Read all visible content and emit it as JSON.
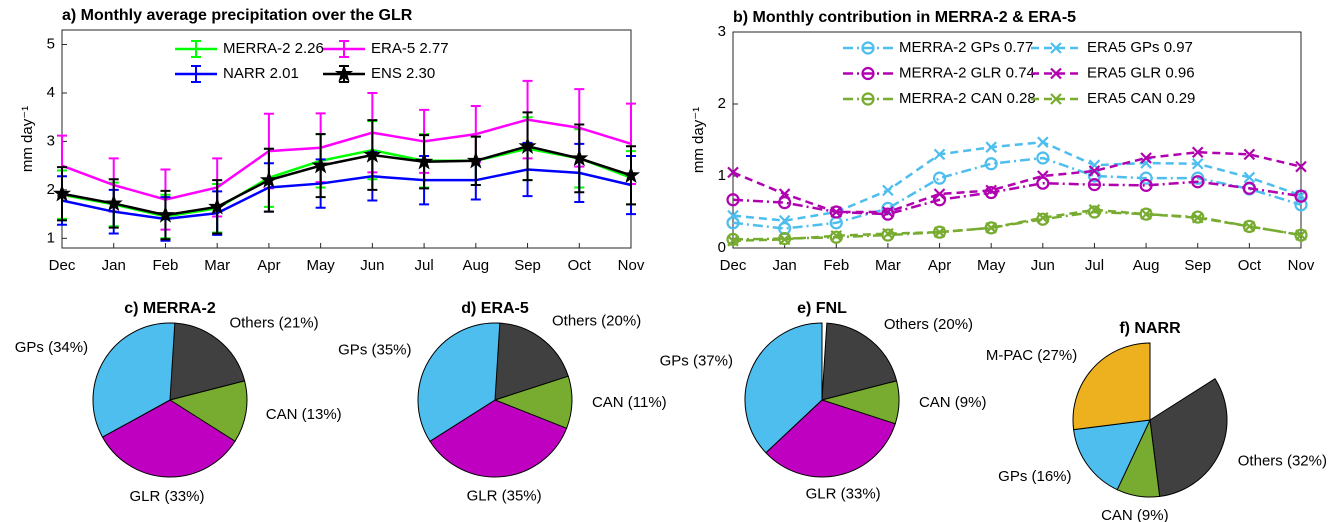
{
  "chart_data": [
    {
      "type": "line",
      "title": "a) Monthly average precipitation over the GLR",
      "ylabel": "mm day⁻¹",
      "categories": [
        "Dec",
        "Jan",
        "Feb",
        "Mar",
        "Apr",
        "May",
        "Jun",
        "Jul",
        "Aug",
        "Sep",
        "Oct",
        "Nov"
      ],
      "ylim": [
        0.8,
        5.3
      ],
      "yticks": [
        1,
        2,
        3,
        4,
        5
      ],
      "series": [
        {
          "name": "MERRA-2 2.26",
          "color": "#00ff00",
          "values": [
            1.9,
            1.7,
            1.45,
            1.62,
            2.25,
            2.6,
            2.82,
            2.6,
            2.6,
            2.85,
            2.65,
            2.25
          ],
          "errors": [
            0.5,
            0.45,
            0.45,
            0.5,
            0.6,
            0.55,
            0.6,
            0.55,
            0.5,
            0.65,
            0.6,
            0.55
          ]
        },
        {
          "name": "ERA-5  2.77",
          "color": "#ff00ff",
          "values": [
            2.5,
            2.1,
            1.8,
            2.05,
            2.8,
            2.87,
            3.18,
            3.0,
            3.15,
            3.45,
            3.28,
            2.95
          ],
          "errors": [
            0.62,
            0.55,
            0.62,
            0.6,
            0.77,
            0.71,
            0.82,
            0.65,
            0.58,
            0.8,
            0.8,
            0.83
          ]
        },
        {
          "name": "NARR  2.01",
          "color": "#0000ff",
          "values": [
            1.78,
            1.55,
            1.4,
            1.52,
            2.05,
            2.13,
            2.28,
            2.2,
            2.2,
            2.42,
            2.35,
            2.1
          ],
          "errors": [
            0.5,
            0.45,
            0.45,
            0.45,
            0.5,
            0.5,
            0.5,
            0.5,
            0.4,
            0.55,
            0.6,
            0.6
          ]
        },
        {
          "name": "ENS 2.30",
          "color": "#000000",
          "marker": "star",
          "values": [
            1.92,
            1.72,
            1.48,
            1.65,
            2.2,
            2.5,
            2.72,
            2.58,
            2.6,
            2.9,
            2.65,
            2.3
          ],
          "errors": [
            0.55,
            0.5,
            0.5,
            0.55,
            0.65,
            0.65,
            0.72,
            0.55,
            0.5,
            0.7,
            0.7,
            0.6
          ]
        }
      ]
    },
    {
      "type": "line",
      "title": "b) Monthly contribution in MERRA-2 & ERA-5",
      "ylabel": "mm day⁻¹",
      "categories": [
        "Dec",
        "Jan",
        "Feb",
        "Mar",
        "Apr",
        "May",
        "Jun",
        "Jul",
        "Aug",
        "Sep",
        "Oct",
        "Nov"
      ],
      "ylim": [
        0,
        3
      ],
      "yticks": [
        0,
        1,
        2,
        3
      ],
      "series": [
        {
          "name": "MERRA-2 GPs 0.77",
          "color": "#4dbeee",
          "marker": "o",
          "linestyle": "dashdot",
          "values": [
            0.35,
            0.27,
            0.35,
            0.55,
            0.97,
            1.17,
            1.25,
            1.0,
            0.97,
            0.97,
            0.82,
            0.6
          ]
        },
        {
          "name": "ERA5 GPs 0.97",
          "color": "#4dbeee",
          "marker": "x",
          "linestyle": "dashed",
          "values": [
            0.45,
            0.38,
            0.5,
            0.8,
            1.3,
            1.4,
            1.47,
            1.15,
            1.18,
            1.17,
            0.98,
            0.73
          ]
        },
        {
          "name": "MERRA-2 GLR 0.74",
          "color": "#b000b0",
          "marker": "o",
          "linestyle": "dashdot",
          "values": [
            0.67,
            0.63,
            0.5,
            0.47,
            0.67,
            0.77,
            0.9,
            0.88,
            0.87,
            0.92,
            0.83,
            0.72
          ]
        },
        {
          "name": "ERA5 GLR 0.96",
          "color": "#b000b0",
          "marker": "x",
          "linestyle": "dashed",
          "values": [
            1.05,
            0.75,
            0.5,
            0.5,
            0.75,
            0.8,
            1.0,
            1.07,
            1.25,
            1.33,
            1.3,
            1.13
          ]
        },
        {
          "name": "MERRA-2 CAN 0.28",
          "color": "#77ac30",
          "marker": "o",
          "linestyle": "dashdot",
          "values": [
            0.12,
            0.13,
            0.15,
            0.18,
            0.22,
            0.28,
            0.4,
            0.5,
            0.47,
            0.43,
            0.3,
            0.18
          ]
        },
        {
          "name": "ERA5 CAN 0.29",
          "color": "#77ac30",
          "marker": "x",
          "linestyle": "dashed",
          "values": [
            0.1,
            0.12,
            0.17,
            0.2,
            0.22,
            0.28,
            0.42,
            0.53,
            0.47,
            0.42,
            0.3,
            0.18
          ]
        }
      ]
    },
    {
      "type": "pie",
      "title": "c) MERRA-2",
      "values": [
        21,
        13,
        33,
        34
      ],
      "value_labels": [
        "Others (21%)",
        "CAN (13%)",
        "GLR (33%)",
        "GPs (34%)"
      ],
      "colors": [
        "#404040",
        "#77ac30",
        "#c000c0",
        "#4dbeee"
      ]
    },
    {
      "type": "pie",
      "title": "d) ERA-5",
      "values": [
        20,
        11,
        35,
        35
      ],
      "value_labels": [
        "Others (20%)",
        "CAN (11%)",
        "GLR (35%)",
        "GPs (35%)"
      ],
      "colors": [
        "#404040",
        "#77ac30",
        "#c000c0",
        "#4dbeee"
      ]
    },
    {
      "type": "pie",
      "title": "e) FNL",
      "values": [
        20,
        9,
        33,
        37
      ],
      "value_labels": [
        "Others (20%)",
        "CAN (9%)",
        "GLR (33%)",
        "GPs (37%)"
      ],
      "colors": [
        "#404040",
        "#77ac30",
        "#c000c0",
        "#4dbeee"
      ]
    },
    {
      "type": "pie",
      "title": "f) NARR",
      "values": [
        32,
        9,
        16,
        27
      ],
      "value_labels": [
        "Others (32%)",
        "CAN (9%)",
        "GPs (16%)",
        "M-PAC (27%)"
      ],
      "colors": [
        "#404040",
        "#77ac30",
        "#4dbeee",
        "#edb120"
      ]
    }
  ]
}
